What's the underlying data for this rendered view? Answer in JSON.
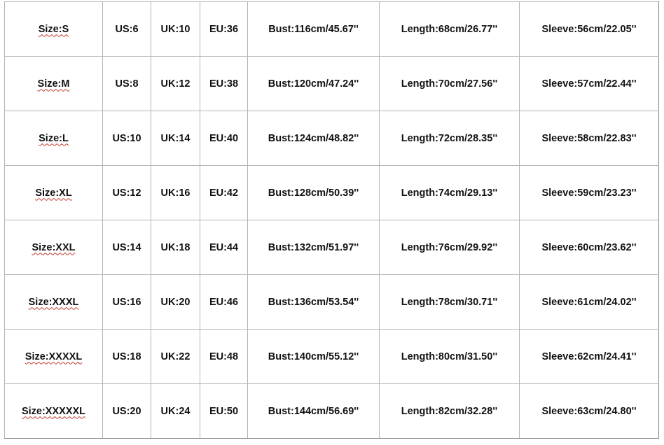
{
  "rows": [
    {
      "size": "Size:S",
      "us": "US:6",
      "uk": "UK:10",
      "eu": "EU:36",
      "bust": "Bust:116cm/45.67''",
      "length": "Length:68cm/26.77''",
      "sleeve": "Sleeve:56cm/22.05''"
    },
    {
      "size": "Size:M",
      "us": "US:8",
      "uk": "UK:12",
      "eu": "EU:38",
      "bust": "Bust:120cm/47.24''",
      "length": "Length:70cm/27.56''",
      "sleeve": "Sleeve:57cm/22.44''"
    },
    {
      "size": "Size:L",
      "us": "US:10",
      "uk": "UK:14",
      "eu": "EU:40",
      "bust": "Bust:124cm/48.82''",
      "length": "Length:72cm/28.35''",
      "sleeve": "Sleeve:58cm/22.83''"
    },
    {
      "size": "Size:XL",
      "us": "US:12",
      "uk": "UK:16",
      "eu": "EU:42",
      "bust": "Bust:128cm/50.39''",
      "length": "Length:74cm/29.13''",
      "sleeve": "Sleeve:59cm/23.23''"
    },
    {
      "size": "Size:XXL",
      "us": "US:14",
      "uk": "UK:18",
      "eu": "EU:44",
      "bust": "Bust:132cm/51.97''",
      "length": "Length:76cm/29.92''",
      "sleeve": "Sleeve:60cm/23.62''"
    },
    {
      "size": "Size:XXXL",
      "us": "US:16",
      "uk": "UK:20",
      "eu": "EU:46",
      "bust": "Bust:136cm/53.54''",
      "length": "Length:78cm/30.71''",
      "sleeve": "Sleeve:61cm/24.02''"
    },
    {
      "size": "Size:XXXXL",
      "us": "US:18",
      "uk": "UK:22",
      "eu": "EU:48",
      "bust": "Bust:140cm/55.12''",
      "length": "Length:80cm/31.50''",
      "sleeve": "Sleeve:62cm/24.41''"
    },
    {
      "size": "Size:XXXXXL",
      "us": "US:20",
      "uk": "UK:24",
      "eu": "EU:50",
      "bust": "Bust:144cm/56.69''",
      "length": "Length:82cm/32.28''",
      "sleeve": "Sleeve:63cm/24.80''"
    }
  ]
}
